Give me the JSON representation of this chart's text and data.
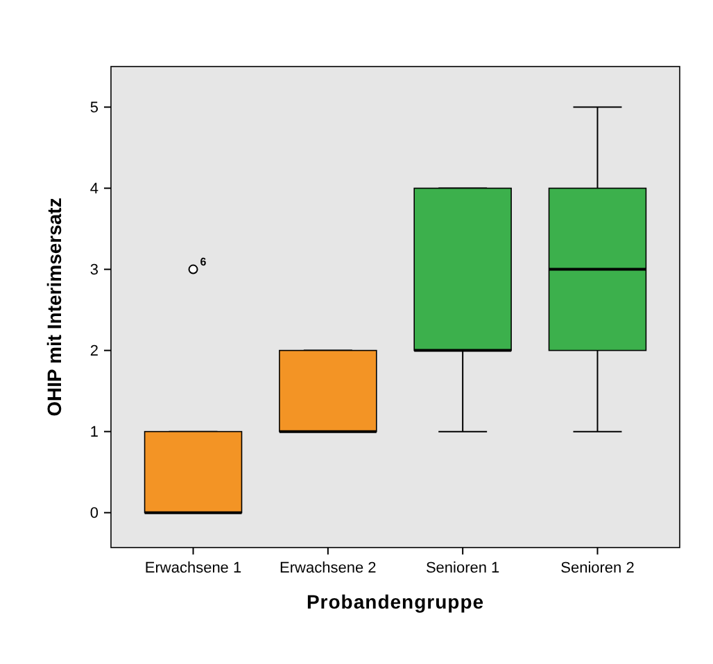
{
  "chart_data": {
    "type": "box",
    "xlabel": "Probandengruppe",
    "ylabel": "OHIP mit Interimsersatz",
    "categories": [
      "Erwachsene 1",
      "Erwachsene 2",
      "Senioren 1",
      "Senioren 2"
    ],
    "colors": [
      "#f39425",
      "#f39425",
      "#3cb04c",
      "#3cb04c"
    ],
    "boxes": [
      {
        "low": 0,
        "q1": 0,
        "median": 0,
        "q3": 1,
        "high": 1,
        "outliers": [
          3
        ]
      },
      {
        "low": 1,
        "q1": 1,
        "median": 1,
        "q3": 2,
        "high": 2
      },
      {
        "low": 1,
        "q1": 2,
        "median": 2,
        "q3": 4,
        "high": 4
      },
      {
        "low": 1,
        "q1": 2,
        "median": 3,
        "q3": 4,
        "high": 5
      }
    ],
    "annotations": [
      "6"
    ],
    "ylim": [
      -0.43,
      5.5
    ],
    "yticks": [
      0,
      1,
      2,
      3,
      4,
      5
    ]
  }
}
